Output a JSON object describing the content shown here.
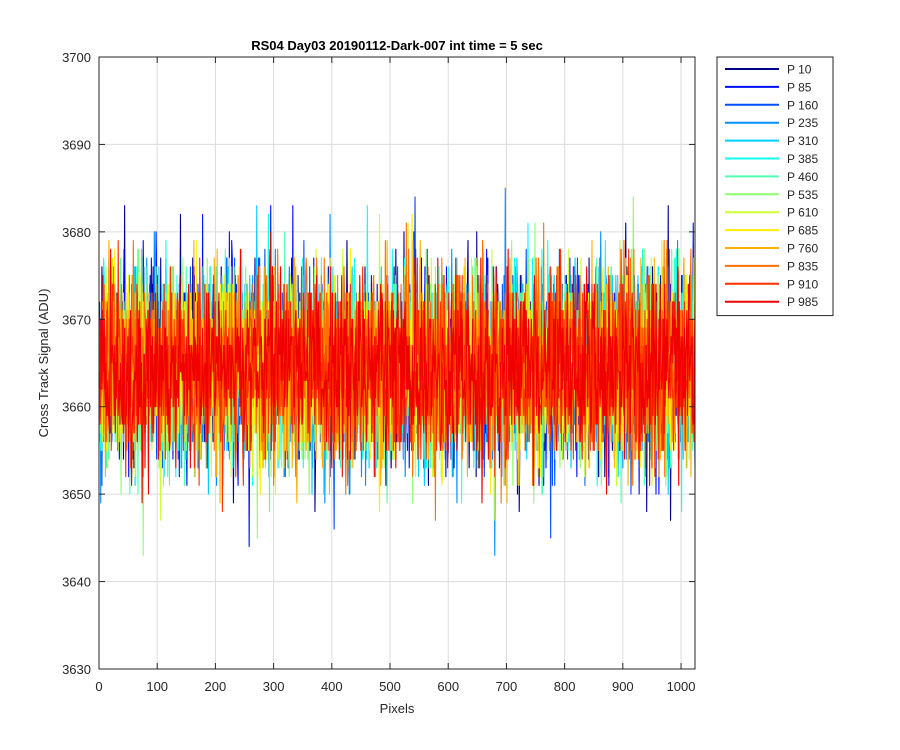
{
  "chart_data": {
    "type": "line",
    "title": "RS04 Day03 20190112-Dark-007 int time = 5 sec",
    "xlabel": "Pixels",
    "ylabel": "Cross Track Signal (ADU)",
    "xlim": [
      0,
      1024
    ],
    "ylim": [
      3630,
      3700
    ],
    "xticks": [
      "0",
      "100",
      "200",
      "300",
      "400",
      "500",
      "600",
      "700",
      "800",
      "900",
      "1000"
    ],
    "yticks": [
      "3630",
      "3640",
      "3650",
      "3660",
      "3670",
      "3680",
      "3690",
      "3700"
    ],
    "grid": true,
    "legend_position": "outside-top-right",
    "n_points": 1024,
    "series": [
      {
        "name": "P 10",
        "color": "#00008F",
        "mean": 3664.5,
        "spread": 8.5
      },
      {
        "name": "P 85",
        "color": "#0010FF",
        "mean": 3664.5,
        "spread": 8.5
      },
      {
        "name": "P 160",
        "color": "#0050FF",
        "mean": 3664.5,
        "spread": 8.5
      },
      {
        "name": "P 235",
        "color": "#0090FF",
        "mean": 3664.5,
        "spread": 8.5
      },
      {
        "name": "P 310",
        "color": "#00CFFF",
        "mean": 3664.5,
        "spread": 8.5
      },
      {
        "name": "P 385",
        "color": "#10FFEF",
        "mean": 3664.5,
        "spread": 8.5
      },
      {
        "name": "P 460",
        "color": "#50FFAF",
        "mean": 3664.5,
        "spread": 8.5
      },
      {
        "name": "P 535",
        "color": "#8FFF70",
        "mean": 3664.5,
        "spread": 8.5
      },
      {
        "name": "P 610",
        "color": "#CFFF30",
        "mean": 3664.5,
        "spread": 8.5
      },
      {
        "name": "P 685",
        "color": "#FFEF00",
        "mean": 3664.5,
        "spread": 8.5
      },
      {
        "name": "P 760",
        "color": "#FFAF00",
        "mean": 3664.5,
        "spread": 8.5
      },
      {
        "name": "P 835",
        "color": "#FF7000",
        "mean": 3664.5,
        "spread": 8.5
      },
      {
        "name": "P 910",
        "color": "#FF3000",
        "mean": 3664.5,
        "spread": 8.5
      },
      {
        "name": "P 985",
        "color": "#F00000",
        "mean": 3664.5,
        "spread": 8.5
      }
    ]
  }
}
